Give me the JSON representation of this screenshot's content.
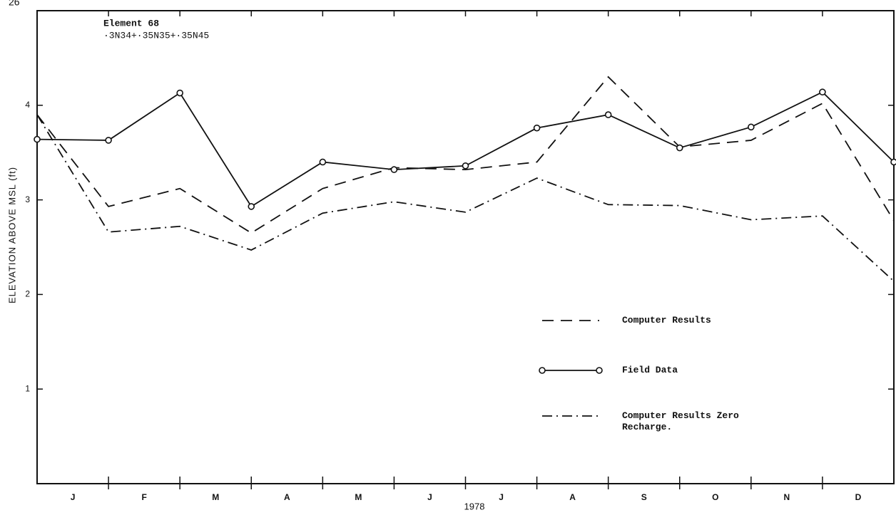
{
  "chart_data": {
    "type": "line",
    "page_number": "26",
    "annotations": [
      "Element 68",
      "·3N34+·35N35+·35N45"
    ],
    "y_label": "ELEVATION ABOVE MSL (ft)",
    "x_label": "1978",
    "x": [
      0,
      1,
      2,
      3,
      4,
      5,
      6,
      7,
      8,
      9,
      10,
      11,
      12
    ],
    "xlim": [
      0,
      12
    ],
    "xticks": [
      1,
      2,
      3,
      4,
      5,
      6,
      7,
      8,
      9,
      10,
      11
    ],
    "x_labels": [
      "J",
      "F",
      "M",
      "A",
      "M",
      "J",
      "J",
      "A",
      "S",
      "O",
      "N",
      "D"
    ],
    "ylim": [
      0,
      5
    ],
    "yticks": [
      1,
      2,
      3,
      4
    ],
    "series": [
      {
        "name": "Computer Results",
        "color": "#111111",
        "style": "dashed",
        "marker": "none",
        "values": [
          3.9,
          2.93,
          3.12,
          2.65,
          3.12,
          3.34,
          3.32,
          3.4,
          4.3,
          3.56,
          3.63,
          4.02,
          2.78
        ]
      },
      {
        "name": "Field Data",
        "color": "#111111",
        "style": "solid",
        "marker": "circle",
        "values": [
          3.64,
          3.63,
          4.13,
          2.93,
          3.4,
          3.32,
          3.36,
          3.76,
          3.9,
          3.55,
          3.77,
          4.14,
          3.4
        ]
      },
      {
        "name": "Computer Results Zero Recharge.",
        "color": "#111111",
        "style": "dashdot",
        "marker": "none",
        "values": [
          3.9,
          2.66,
          2.72,
          2.47,
          2.86,
          2.98,
          2.87,
          3.23,
          2.95,
          2.94,
          2.79,
          2.83,
          2.14
        ]
      }
    ]
  }
}
